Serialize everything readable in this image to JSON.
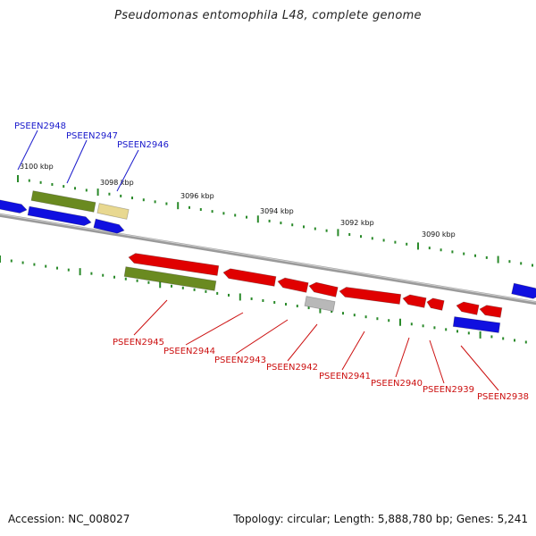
{
  "title": "Pseudomonas entomophila L48, complete genome",
  "accession_text": "Accession: NC_008027",
  "summary_text": "Topology: circular; Length: 5,888,780 bp; Genes: 5,241",
  "colors": {
    "forward": "#1010e0",
    "reverse": "#e00000",
    "green": "#6a8a20",
    "yellow": "#e8d890",
    "gray": "#b8b8b8",
    "tick": "#2a8a2a",
    "backbone": "#888888"
  },
  "kbp_labels": [
    "3100 kbp",
    "3098 kbp",
    "3096 kbp",
    "3094 kbp",
    "3092 kbp",
    "3090 kbp"
  ],
  "gene_labels": [
    {
      "text": "PSEEN2948",
      "strand": "forward"
    },
    {
      "text": "PSEEN2947",
      "strand": "forward"
    },
    {
      "text": "PSEEN2946",
      "strand": "forward"
    },
    {
      "text": "PSEEN2945",
      "strand": "reverse"
    },
    {
      "text": "PSEEN2944",
      "strand": "reverse"
    },
    {
      "text": "PSEEN2943",
      "strand": "reverse"
    },
    {
      "text": "PSEEN2942",
      "strand": "reverse"
    },
    {
      "text": "PSEEN2941",
      "strand": "reverse"
    },
    {
      "text": "PSEEN2940",
      "strand": "reverse"
    },
    {
      "text": "PSEEN2939",
      "strand": "reverse"
    },
    {
      "text": "PSEEN2938",
      "strand": "reverse"
    }
  ]
}
